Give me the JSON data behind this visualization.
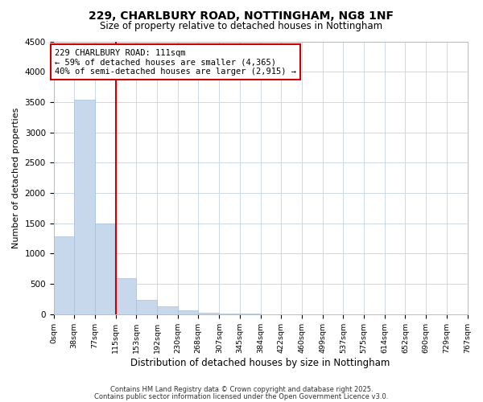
{
  "title1": "229, CHARLBURY ROAD, NOTTINGHAM, NG8 1NF",
  "title2": "Size of property relative to detached houses in Nottingham",
  "xlabel": "Distribution of detached houses by size in Nottingham",
  "ylabel": "Number of detached properties",
  "bar_color": "#c8d8ec",
  "bar_edgecolor": "#a8c0d8",
  "bin_edges": [
    0,
    38,
    77,
    115,
    153,
    192,
    230,
    268,
    307,
    345,
    384,
    422,
    460,
    499,
    537,
    575,
    614,
    652,
    690,
    729,
    767
  ],
  "bin_labels": [
    "0sqm",
    "38sqm",
    "77sqm",
    "115sqm",
    "153sqm",
    "192sqm",
    "230sqm",
    "268sqm",
    "307sqm",
    "345sqm",
    "384sqm",
    "422sqm",
    "460sqm",
    "499sqm",
    "537sqm",
    "575sqm",
    "614sqm",
    "652sqm",
    "690sqm",
    "729sqm",
    "767sqm"
  ],
  "bar_heights": [
    1280,
    3540,
    1490,
    600,
    240,
    130,
    65,
    30,
    10,
    5,
    2,
    0,
    0,
    0,
    0,
    0,
    0,
    0,
    0,
    0
  ],
  "ylim": [
    0,
    4500
  ],
  "yticks": [
    0,
    500,
    1000,
    1500,
    2000,
    2500,
    3000,
    3500,
    4000,
    4500
  ],
  "property_label": "229 CHARLBURY ROAD: 111sqm",
  "pct_smaller": 59,
  "n_smaller": 4365,
  "pct_larger_semi": 40,
  "n_larger_semi": 2915,
  "vline_x": 115,
  "annotation_box_color": "#ffffff",
  "annotation_box_edgecolor": "#cc0000",
  "vline_color": "#cc0000",
  "footer1": "Contains HM Land Registry data © Crown copyright and database right 2025.",
  "footer2": "Contains public sector information licensed under the Open Government Licence v3.0.",
  "bg_color": "#ffffff",
  "grid_color": "#ccd8e4"
}
